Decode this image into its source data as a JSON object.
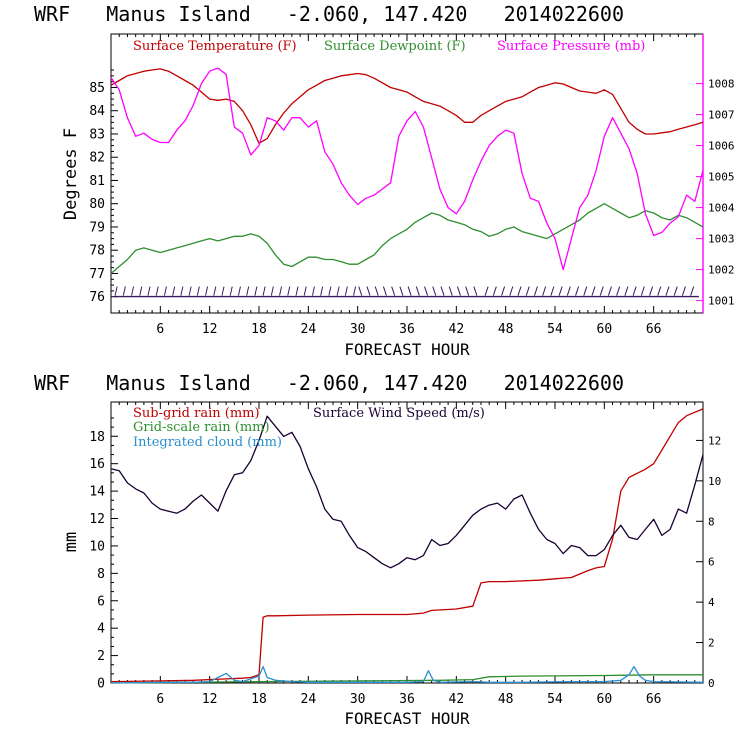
{
  "chart_data": [
    {
      "type": "line",
      "title": "WRF   Manus Island   -2.060, 147.420   2014022600",
      "xlabel": "FORECAST HOUR",
      "ylabel": "Degrees F",
      "x_ticks": [
        6,
        12,
        18,
        24,
        30,
        36,
        42,
        48,
        54,
        60,
        66
      ],
      "xlim": [
        0,
        72
      ],
      "ylim": [
        75.3,
        87.3
      ],
      "y_ticks": [
        76,
        77,
        78,
        79,
        80,
        81,
        82,
        83,
        84,
        85
      ],
      "y2_ticks": [
        1001,
        1002,
        1003,
        1004,
        1005,
        1006,
        1007,
        1008
      ],
      "y2lim": [
        1000.6,
        1009.6
      ],
      "legend_position": "top",
      "series": [
        {
          "name": "Surface Temperature (F)",
          "color": "#c00000",
          "axis": "left",
          "x": [
            0,
            1,
            2,
            3,
            4,
            5,
            6,
            7,
            8,
            9,
            10,
            11,
            12,
            13,
            14,
            15,
            16,
            17,
            18,
            19,
            20,
            21,
            22,
            23,
            24,
            25,
            26,
            27,
            28,
            29,
            30,
            31,
            32,
            33,
            34,
            35,
            36,
            37,
            38,
            39,
            40,
            41,
            42,
            43,
            44,
            45,
            46,
            47,
            48,
            49,
            50,
            51,
            52,
            53,
            54,
            55,
            56,
            57,
            58,
            59,
            60,
            61,
            62,
            63,
            64,
            65,
            66,
            67,
            68,
            69,
            70,
            71,
            72
          ],
          "values": [
            85.1,
            85.3,
            85.5,
            85.6,
            85.7,
            85.75,
            85.8,
            85.7,
            85.5,
            85.3,
            85.1,
            84.8,
            84.5,
            84.45,
            84.5,
            84.4,
            84.0,
            83.4,
            82.6,
            82.8,
            83.4,
            83.9,
            84.3,
            84.6,
            84.9,
            85.1,
            85.3,
            85.4,
            85.5,
            85.55,
            85.6,
            85.55,
            85.4,
            85.2,
            85.0,
            84.9,
            84.8,
            84.6,
            84.4,
            84.3,
            84.2,
            84.0,
            83.8,
            83.5,
            83.5,
            83.8,
            84.0,
            84.2,
            84.4,
            84.5,
            84.6,
            84.8,
            85.0,
            85.1,
            85.2,
            85.15,
            85.0,
            84.85,
            84.8,
            84.75,
            84.9,
            84.7,
            84.1,
            83.5,
            83.2,
            83.0,
            83.0,
            83.05,
            83.1,
            83.2,
            83.3,
            83.4,
            83.5
          ]
        },
        {
          "name": "Surface Dewpoint (F)",
          "color": "#2f8f2f",
          "axis": "left",
          "x": [
            0,
            1,
            2,
            3,
            4,
            5,
            6,
            7,
            8,
            9,
            10,
            11,
            12,
            13,
            14,
            15,
            16,
            17,
            18,
            19,
            20,
            21,
            22,
            23,
            24,
            25,
            26,
            27,
            28,
            29,
            30,
            31,
            32,
            33,
            34,
            35,
            36,
            37,
            38,
            39,
            40,
            41,
            42,
            43,
            44,
            45,
            46,
            47,
            48,
            49,
            50,
            51,
            52,
            53,
            54,
            55,
            56,
            57,
            58,
            59,
            60,
            61,
            62,
            63,
            64,
            65,
            66,
            67,
            68,
            69,
            70,
            71,
            72
          ],
          "values": [
            77.0,
            77.3,
            77.6,
            78.0,
            78.1,
            78.0,
            77.9,
            78.0,
            78.1,
            78.2,
            78.3,
            78.4,
            78.5,
            78.4,
            78.5,
            78.6,
            78.6,
            78.7,
            78.6,
            78.3,
            77.8,
            77.4,
            77.3,
            77.5,
            77.7,
            77.7,
            77.6,
            77.6,
            77.5,
            77.4,
            77.4,
            77.6,
            77.8,
            78.2,
            78.5,
            78.7,
            78.9,
            79.2,
            79.4,
            79.6,
            79.5,
            79.3,
            79.2,
            79.1,
            78.9,
            78.8,
            78.6,
            78.7,
            78.9,
            79.0,
            78.8,
            78.7,
            78.6,
            78.5,
            78.7,
            78.9,
            79.1,
            79.3,
            79.6,
            79.8,
            80.0,
            79.8,
            79.6,
            79.4,
            79.5,
            79.7,
            79.6,
            79.4,
            79.3,
            79.5,
            79.4,
            79.2,
            79.0
          ]
        },
        {
          "name": "Surface Pressure (mb)",
          "color": "#ff00ff",
          "axis": "right",
          "x": [
            0,
            1,
            2,
            3,
            4,
            5,
            6,
            7,
            8,
            9,
            10,
            11,
            12,
            13,
            14,
            15,
            16,
            17,
            18,
            19,
            20,
            21,
            22,
            23,
            24,
            25,
            26,
            27,
            28,
            29,
            30,
            31,
            32,
            33,
            34,
            35,
            36,
            37,
            38,
            39,
            40,
            41,
            42,
            43,
            44,
            45,
            46,
            47,
            48,
            49,
            50,
            51,
            52,
            53,
            54,
            55,
            56,
            57,
            58,
            59,
            60,
            61,
            62,
            63,
            64,
            65,
            66,
            67,
            68,
            69,
            70,
            71,
            72
          ],
          "values": [
            1008.2,
            1007.8,
            1006.9,
            1006.3,
            1006.4,
            1006.2,
            1006.1,
            1006.1,
            1006.5,
            1006.8,
            1007.3,
            1008.0,
            1008.4,
            1008.5,
            1008.3,
            1006.6,
            1006.4,
            1005.7,
            1006.0,
            1006.9,
            1006.8,
            1006.5,
            1006.9,
            1006.9,
            1006.6,
            1006.8,
            1005.8,
            1005.4,
            1004.8,
            1004.4,
            1004.1,
            1004.3,
            1004.4,
            1004.6,
            1004.8,
            1006.3,
            1006.8,
            1007.1,
            1006.6,
            1005.6,
            1004.6,
            1004.0,
            1003.8,
            1004.2,
            1004.9,
            1005.5,
            1006.0,
            1006.3,
            1006.5,
            1006.4,
            1005.1,
            1004.3,
            1004.2,
            1003.5,
            1003.0,
            1002.0,
            1003.0,
            1004.0,
            1004.4,
            1005.2,
            1006.3,
            1006.9,
            1006.4,
            1005.9,
            1005.1,
            1003.8,
            1003.1,
            1003.2,
            1003.5,
            1003.7,
            1004.4,
            1004.2,
            1005.2
          ]
        }
      ],
      "wind_barbs": true
    },
    {
      "type": "line",
      "title": "WRF   Manus Island   -2.060, 147.420   2014022600",
      "xlabel": "FORECAST HOUR",
      "ylabel": "mm",
      "x_ticks": [
        6,
        12,
        18,
        24,
        30,
        36,
        42,
        48,
        54,
        60,
        66
      ],
      "xlim": [
        0,
        72
      ],
      "ylim": [
        0,
        20.5
      ],
      "y_ticks": [
        0,
        2,
        4,
        6,
        8,
        10,
        12,
        14,
        16,
        18
      ],
      "y2_ticks": [
        0,
        2,
        4,
        6,
        8,
        10,
        12
      ],
      "y2lim": [
        0,
        13.9
      ],
      "legend_position": "top-left",
      "series": [
        {
          "name": "Sub-grid rain (mm)",
          "color": "#c00000",
          "axis": "left",
          "x": [
            0,
            6,
            10,
            14,
            16,
            17,
            18,
            18.5,
            19,
            20,
            24,
            30,
            36,
            38,
            39,
            42,
            44,
            45,
            46,
            48,
            52,
            54,
            56,
            58,
            59,
            60,
            61,
            62,
            63,
            64,
            65,
            66,
            67,
            68,
            69,
            70,
            72
          ],
          "values": [
            0.1,
            0.15,
            0.2,
            0.3,
            0.35,
            0.4,
            0.6,
            4.8,
            4.9,
            4.9,
            4.95,
            5.0,
            5.0,
            5.1,
            5.3,
            5.4,
            5.6,
            7.3,
            7.4,
            7.4,
            7.5,
            7.6,
            7.7,
            8.2,
            8.4,
            8.5,
            10.5,
            14.0,
            15.0,
            15.3,
            15.6,
            16.0,
            17.0,
            18.0,
            19.0,
            19.5,
            20.0
          ]
        },
        {
          "name": "Grid-scale rain (mm)",
          "color": "#2f8f2f",
          "axis": "left",
          "x": [
            0,
            10,
            18,
            30,
            40,
            44,
            46,
            50,
            60,
            66,
            72
          ],
          "values": [
            0.0,
            0.05,
            0.1,
            0.15,
            0.2,
            0.25,
            0.45,
            0.5,
            0.55,
            0.6,
            0.6
          ]
        },
        {
          "name": "Integrated cloud (mm)",
          "color": "#2a8fd0",
          "axis": "left",
          "x": [
            0,
            6,
            10,
            12,
            13,
            14,
            15,
            16,
            17,
            18,
            18.5,
            19,
            20,
            22,
            24,
            30,
            36,
            38,
            38.6,
            39.2,
            40,
            44,
            46,
            50,
            56,
            60,
            62,
            63,
            63.6,
            64.3,
            65,
            66,
            72
          ],
          "values": [
            0.0,
            0.05,
            0.05,
            0.1,
            0.4,
            0.7,
            0.2,
            0.1,
            0.3,
            0.5,
            1.2,
            0.4,
            0.2,
            0.1,
            0.05,
            0.05,
            0.05,
            0.1,
            0.9,
            0.2,
            0.05,
            0.1,
            0.05,
            0.05,
            0.1,
            0.1,
            0.2,
            0.6,
            1.2,
            0.5,
            0.2,
            0.1,
            0.05
          ]
        },
        {
          "name": "Surface Wind Speed (m/s)",
          "color": "#1a0033",
          "axis": "right",
          "x": [
            0,
            1,
            2,
            3,
            4,
            5,
            6,
            7,
            8,
            9,
            10,
            11,
            12,
            13,
            14,
            15,
            16,
            17,
            18,
            19,
            20,
            21,
            22,
            23,
            24,
            25,
            26,
            27,
            28,
            29,
            30,
            31,
            32,
            33,
            34,
            35,
            36,
            37,
            38,
            39,
            40,
            41,
            42,
            43,
            44,
            45,
            46,
            47,
            48,
            49,
            50,
            51,
            52,
            53,
            54,
            55,
            56,
            57,
            58,
            59,
            60,
            61,
            62,
            63,
            64,
            65,
            66,
            67,
            68,
            69,
            70,
            71,
            72
          ],
          "values": [
            10.6,
            10.5,
            9.9,
            9.6,
            9.4,
            8.9,
            8.6,
            8.5,
            8.4,
            8.6,
            9.0,
            9.3,
            8.9,
            8.5,
            9.5,
            10.3,
            10.4,
            11.0,
            12.0,
            13.2,
            12.7,
            12.2,
            12.4,
            11.7,
            10.6,
            9.7,
            8.6,
            8.1,
            8.0,
            7.3,
            6.7,
            6.5,
            6.2,
            5.9,
            5.7,
            5.9,
            6.2,
            6.1,
            6.3,
            7.1,
            6.8,
            6.9,
            7.3,
            7.8,
            8.3,
            8.6,
            8.8,
            8.9,
            8.6,
            9.1,
            9.3,
            8.4,
            7.6,
            7.1,
            6.9,
            6.4,
            6.8,
            6.7,
            6.3,
            6.3,
            6.6,
            7.3,
            7.8,
            7.2,
            7.1,
            7.6,
            8.1,
            7.3,
            7.6,
            8.6,
            8.4,
            9.8,
            11.3
          ]
        }
      ]
    }
  ]
}
